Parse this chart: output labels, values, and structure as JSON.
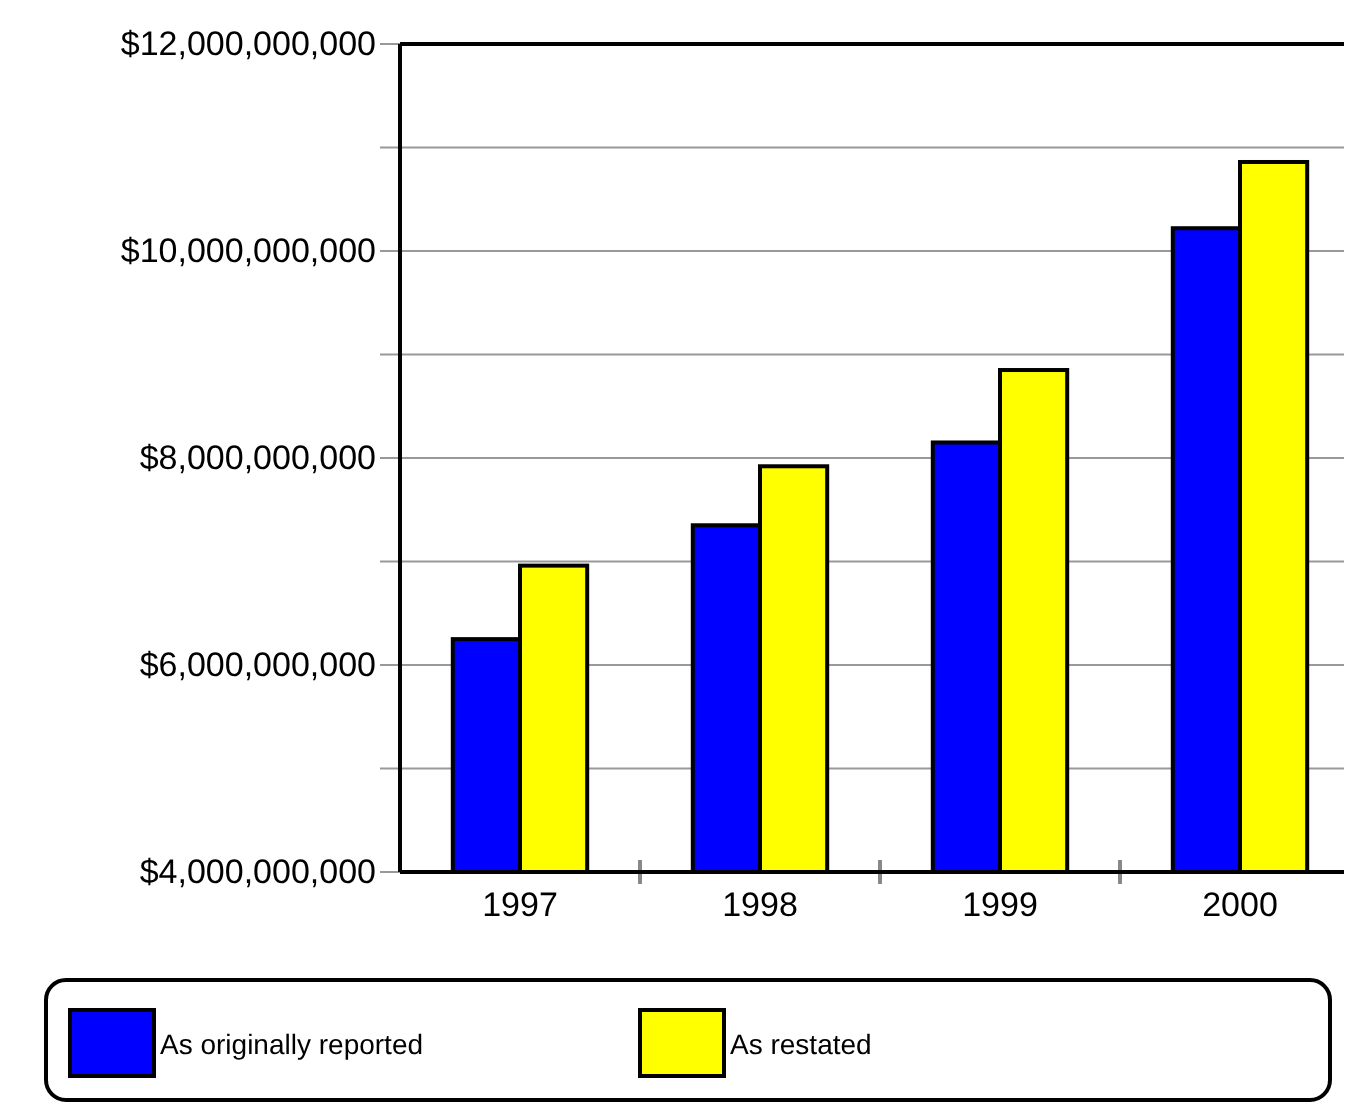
{
  "chart_data": {
    "type": "bar",
    "categories": [
      "1997",
      "1998",
      "1999",
      "2000"
    ],
    "series": [
      {
        "name": "As originally reported",
        "color": "#0000ff",
        "values": [
          6250000000,
          7350000000,
          8150000000,
          10220000000
        ]
      },
      {
        "name": "As restated",
        "color": "#ffff00",
        "values": [
          6960000000,
          7920000000,
          8850000000,
          10860000000
        ]
      }
    ],
    "ylim": [
      4000000000,
      12000000000
    ],
    "yticks": [
      {
        "value": 4000000000,
        "label": "$4,000,000,000"
      },
      {
        "value": 5000000000,
        "label": null
      },
      {
        "value": 6000000000,
        "label": "$6,000,000,000"
      },
      {
        "value": 7000000000,
        "label": null
      },
      {
        "value": 8000000000,
        "label": "$8,000,000,000"
      },
      {
        "value": 9000000000,
        "label": null
      },
      {
        "value": 10000000000,
        "label": "$10,000,000,000"
      },
      {
        "value": 11000000000,
        "label": null
      },
      {
        "value": 12000000000,
        "label": "$12,000,000,000"
      }
    ],
    "grid": true,
    "legend": "bottom"
  }
}
